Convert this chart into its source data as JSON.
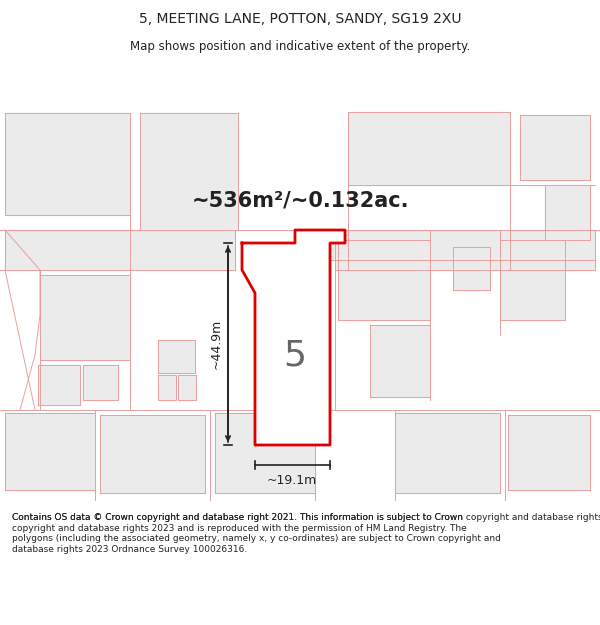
{
  "title": "5, MEETING LANE, POTTON, SANDY, SG19 2XU",
  "subtitle": "Map shows position and indicative extent of the property.",
  "area_text": "~536m²/~0.132ac.",
  "dim_width": "~19.1m",
  "dim_height": "~44.9m",
  "label": "5",
  "footer": "Contains OS data © Crown copyright and database right 2021. This information is subject to Crown copyright and database rights 2023 and is reproduced with the permission of HM Land Registry. The polygons (including the associated geometry, namely x, y co-ordinates) are subject to Crown copyright and database rights 2023 Ordnance Survey 100026316.",
  "bg_color": "#ffffff",
  "map_bg": "#ffffff",
  "parcel_fill": "#eeeeee",
  "parcel_stroke": "#f0a0a0",
  "plot_fill": "#ffffff",
  "plot_stroke": "#dd0000",
  "title_color": "#222222",
  "footer_color": "#222222",
  "dim_color": "#333333",
  "label_color": "#555555"
}
